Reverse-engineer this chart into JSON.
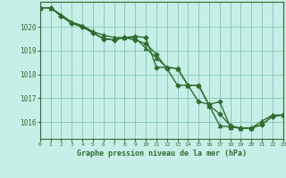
{
  "title": "Graphe pression niveau de la mer (hPa)",
  "background_color": "#c8eee8",
  "grid_color": "#88ccbb",
  "line_color": "#2d6e2d",
  "figsize": [
    3.2,
    2.0
  ],
  "dpi": 100,
  "xlim": [
    0,
    23
  ],
  "ylim": [
    1015.3,
    1021.05
  ],
  "yticks": [
    1016,
    1017,
    1018,
    1019,
    1020
  ],
  "xticks": [
    0,
    1,
    2,
    3,
    4,
    5,
    6,
    7,
    8,
    9,
    10,
    11,
    12,
    13,
    14,
    15,
    16,
    17,
    18,
    19,
    20,
    21,
    22,
    23
  ],
  "series": [
    [
      1020.8,
      1020.8,
      1020.5,
      1020.2,
      1020.05,
      1019.8,
      1019.65,
      1019.55,
      1019.55,
      1019.55,
      1019.1,
      1018.7,
      1018.3,
      1018.25,
      1017.55,
      1017.55,
      1016.7,
      1015.85,
      1015.8,
      1015.75,
      1015.75,
      1016.05,
      1016.3,
      1016.3
    ],
    [
      1020.8,
      1020.8,
      1020.45,
      1020.15,
      1020.0,
      1019.75,
      1019.5,
      1019.45,
      1019.55,
      1019.6,
      1019.55,
      1018.3,
      1018.3,
      1018.25,
      1017.55,
      1016.85,
      1016.75,
      1016.85,
      1015.8,
      1015.75,
      1015.75,
      1015.9,
      1016.25,
      1016.3
    ],
    [
      1020.8,
      1020.8,
      1020.45,
      1020.15,
      1020.0,
      1019.75,
      1019.5,
      1019.45,
      1019.55,
      1019.45,
      1019.3,
      1018.85,
      1018.25,
      1017.55,
      1017.55,
      1017.55,
      1016.7,
      1016.35,
      1015.85,
      1015.75,
      1015.75,
      1015.9,
      1016.25,
      1016.3
    ]
  ],
  "marker_shapes": [
    "^",
    "D",
    "D"
  ],
  "marker_sizes": [
    3.5,
    2.8,
    2.8
  ],
  "linewidth": 1.0
}
